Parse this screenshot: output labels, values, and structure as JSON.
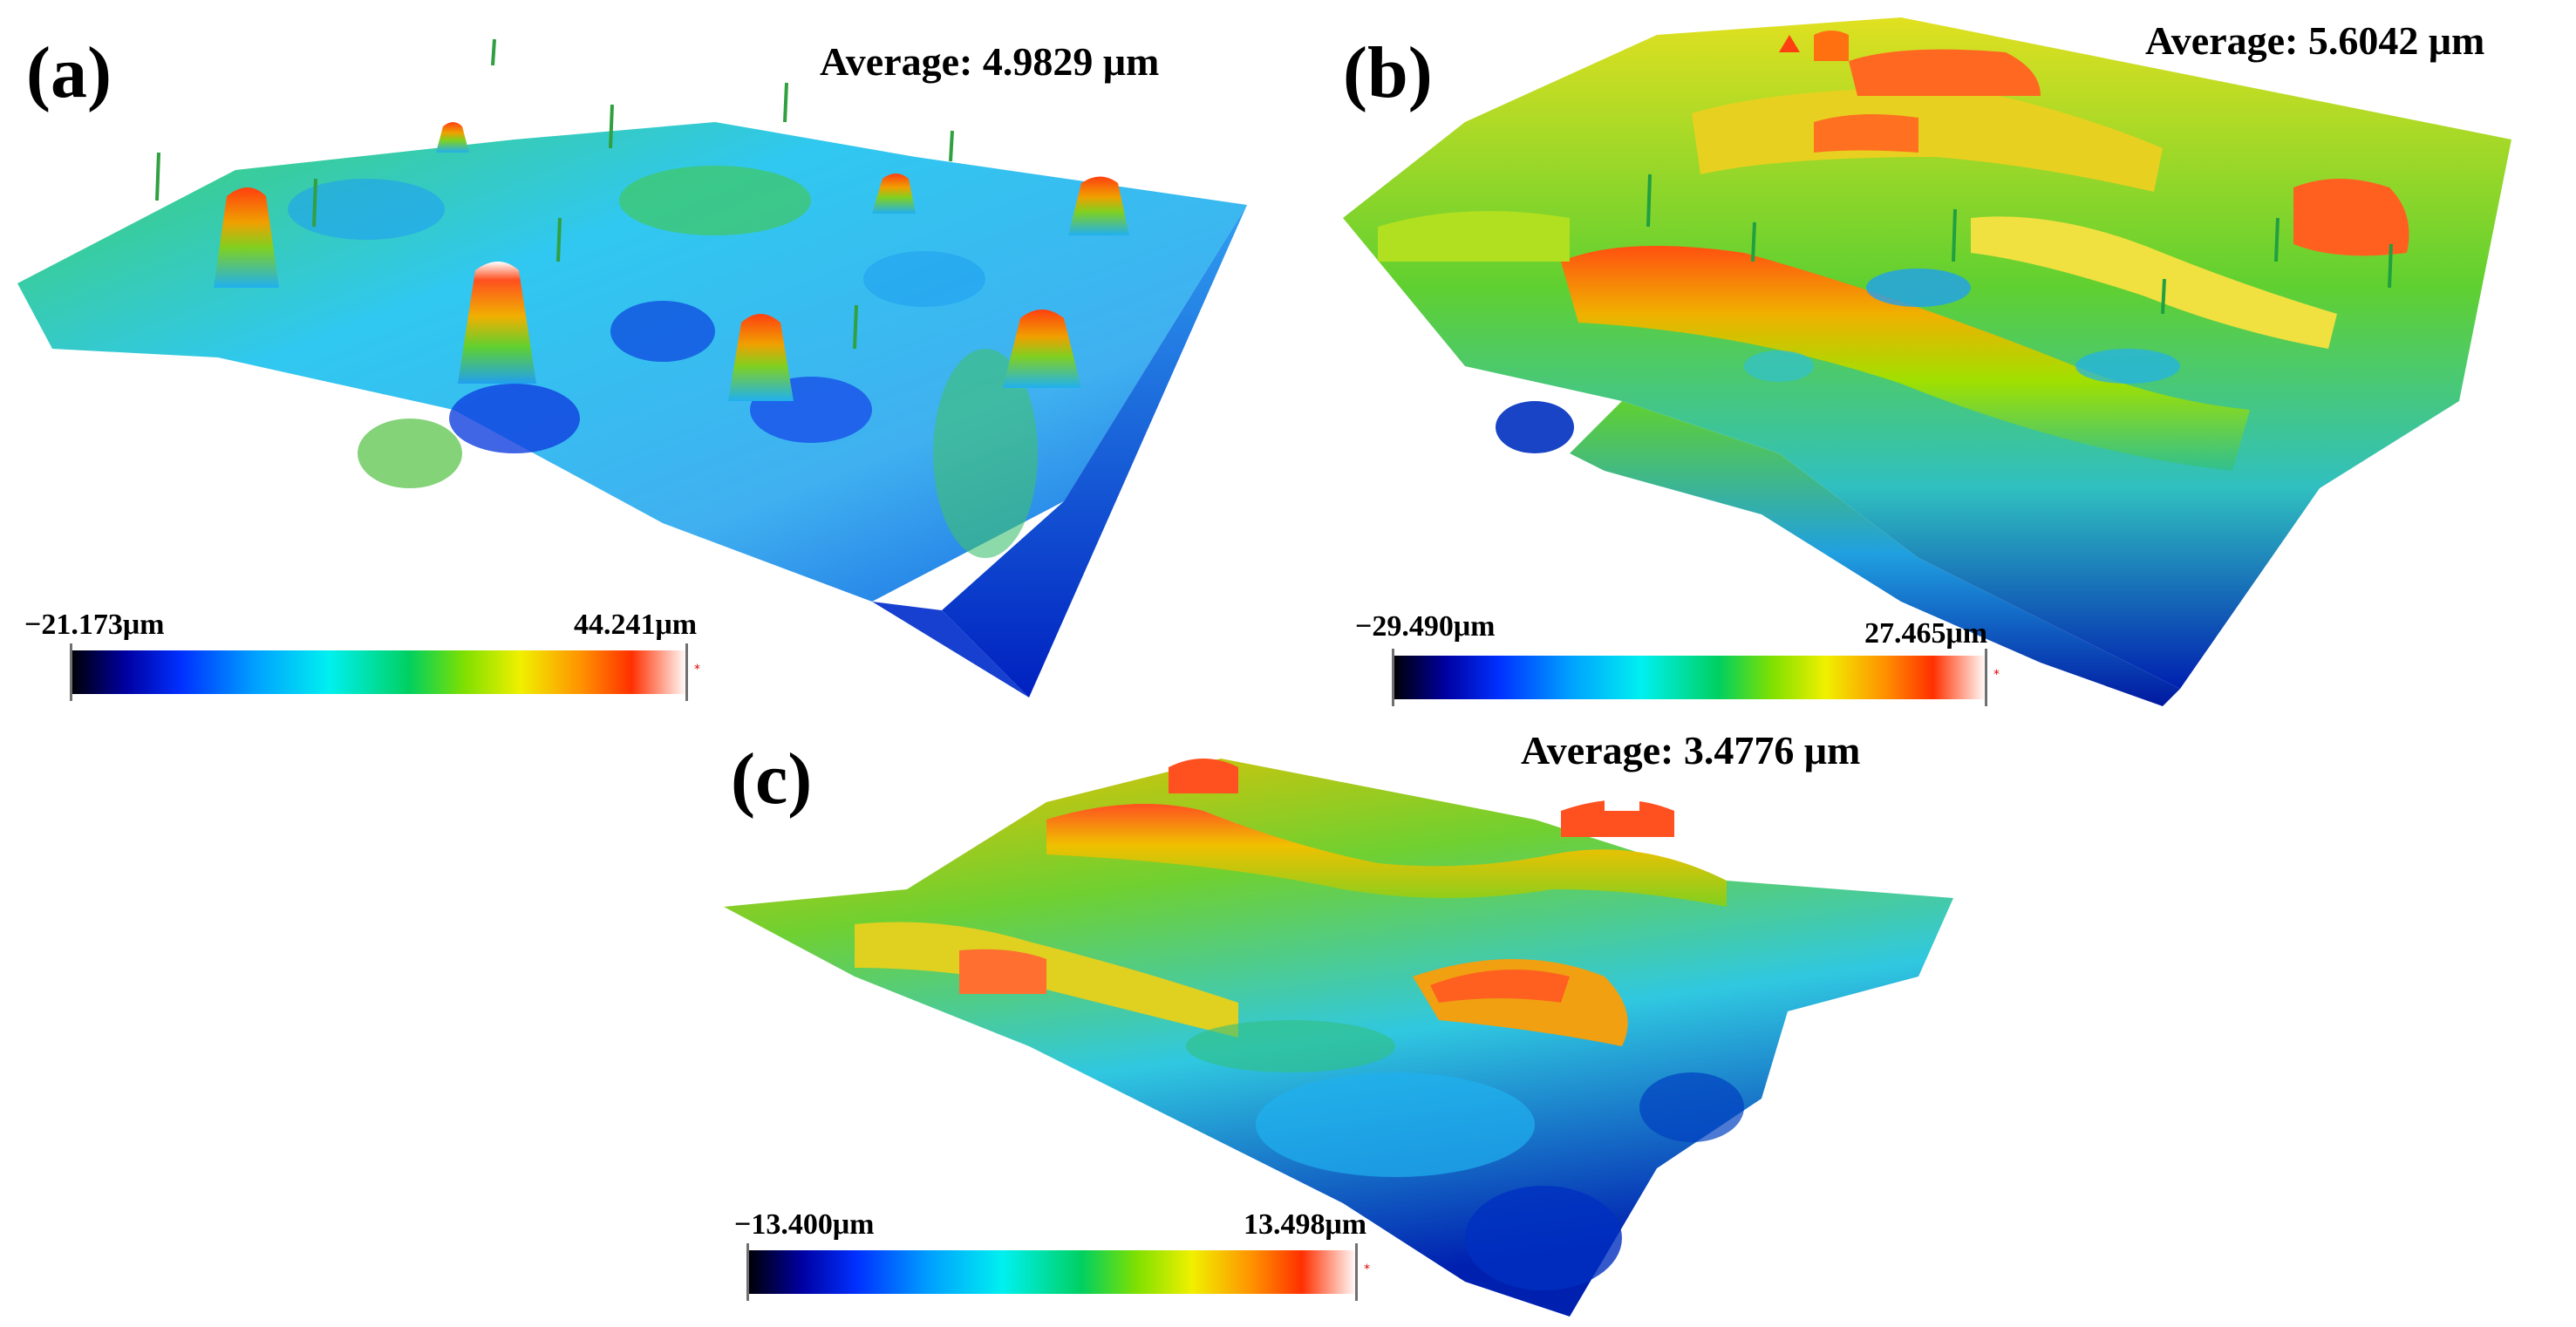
{
  "panels": [
    {
      "label": "(a)",
      "average": "Average: 4.9829 μm",
      "scale": {
        "min": "−21.173μm",
        "max": "44.241μm"
      },
      "surface_icon": "3d-surface-topography-pillars"
    },
    {
      "label": "(b)",
      "average": "Average: 5.6042 μm",
      "scale": {
        "min": "−29.490μm",
        "max": "27.465μm"
      },
      "surface_icon": "3d-surface-topography-ridges"
    },
    {
      "label": "(c)",
      "average": "Average: 3.4776 μm",
      "scale": {
        "min": "−13.400μm",
        "max": "13.498μm"
      },
      "surface_icon": "3d-surface-topography-waves"
    }
  ],
  "colormap": [
    "#000000",
    "#0000a0",
    "#0030ff",
    "#00a0ff",
    "#00f0f0",
    "#00d060",
    "#80e000",
    "#f0f000",
    "#ff9000",
    "#ff3000",
    "#ffffff"
  ]
}
